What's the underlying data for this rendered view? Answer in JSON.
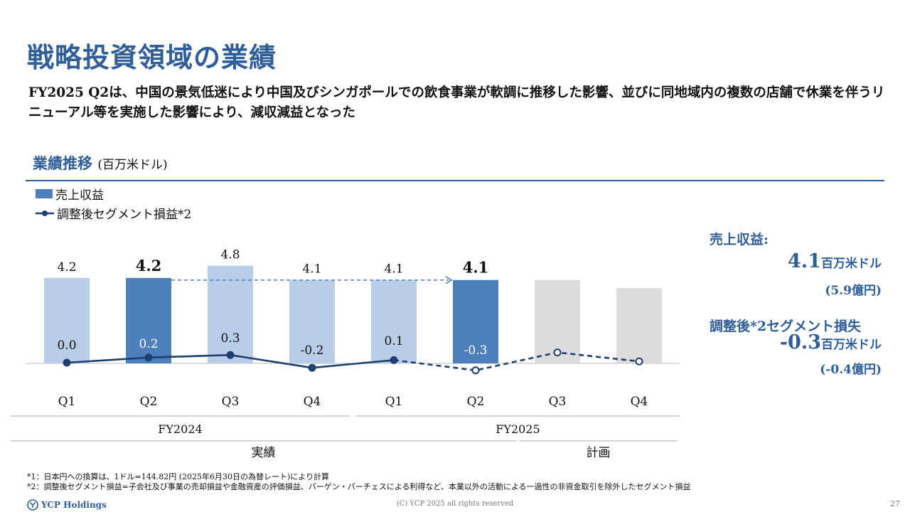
{
  "title": "戦略投資領域の業績",
  "lead": "FY2025 Q2は、中国の景気低迷により中国及びシンガポールでの飲食事業が軟調に推移した影響、並びに同地域内の複数の店舗で休業を伴うリニューアル等を実施した影響により、減収減益となった",
  "section": {
    "heading": "業績推移",
    "unit": "(百万米ドル)"
  },
  "chart_data": {
    "type": "bar",
    "categories": [
      "Q1",
      "Q2",
      "Q3",
      "Q4",
      "Q1",
      "Q2",
      "Q3",
      "Q4"
    ],
    "groups": [
      {
        "label": "FY2024",
        "span": [
          0,
          3
        ]
      },
      {
        "label": "FY2025",
        "span": [
          4,
          7
        ]
      }
    ],
    "status_groups": [
      {
        "label": "実績",
        "span": [
          0,
          5
        ]
      },
      {
        "label": "計画",
        "span": [
          6,
          7
        ]
      }
    ],
    "series": [
      {
        "name": "売上収益",
        "kind": "bar",
        "values": [
          4.2,
          4.2,
          4.8,
          4.1,
          4.1,
          4.1,
          4.1,
          3.7
        ],
        "labels": [
          "4.2",
          "4.2",
          "4.8",
          "4.1",
          "4.1",
          "4.1",
          "",
          ""
        ],
        "highlight": [
          1,
          5
        ],
        "plan": [
          6,
          7
        ]
      },
      {
        "name": "調整後セグメント損益*2",
        "kind": "line",
        "values": [
          0.0,
          0.2,
          0.3,
          -0.2,
          0.1,
          -0.3,
          0.4,
          0.05
        ],
        "labels": [
          "0.0",
          "0.2",
          "0.3",
          "-0.2",
          "0.1",
          "-0.3",
          "",
          ""
        ],
        "plan_from": 4
      }
    ],
    "ylim_bar": [
      0,
      5
    ],
    "ylim_line": [
      -0.5,
      0.6
    ],
    "colors": {
      "bar": "#b9cde6",
      "bar_highlight": "#4e7fbd",
      "bar_plan": "#dcdcdc",
      "line": "#1f3f6e",
      "group_rule": "#a8a8a8"
    },
    "legend": "top-left",
    "grid": false
  },
  "summary": {
    "revenue_label": "売上収益:",
    "revenue_value": "4.1",
    "revenue_unit": "百万米ドル",
    "revenue_jpy": "(5.9億円)",
    "segment_label": "調整後*2セグメント損失",
    "segment_value": "-0.3",
    "segment_unit": "百万米ドル",
    "segment_jpy": "(-0.4億円)"
  },
  "footnotes": [
    "*1：日本円への換算は、1ドル=144.82円 (2025年6月30日の為替レート)により計算",
    "*2：調整後セグメント損益=子会社及び事業の売却損益や金融資産の評価損益、バーゲン・パーチェスによる利得など、本業以外の活動による一過性の非資金取引を除外したセグメント損益"
  ],
  "footer": {
    "logo_text": "YCP Holdings",
    "logo_icon": "ycp-logo-icon",
    "copyright": "(C) YCP 2025 all rights reserved",
    "page": "27"
  }
}
